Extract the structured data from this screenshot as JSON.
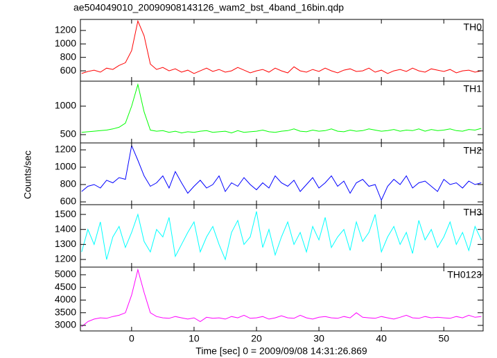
{
  "chart_data": {
    "type": "line",
    "title": "ae504049010_20090908143126_wam2_bst_4band_16bin.qdp",
    "xlabel": "Time [sec] 0 = 2009/09/08 14:31:26.869",
    "ylabel": "Counts/sec",
    "xlim": [
      -8.2,
      56.3
    ],
    "xticks": [
      0,
      10,
      20,
      30,
      40,
      50
    ],
    "x": [
      -8,
      -7,
      -6,
      -5,
      -4,
      -3,
      -2,
      -1,
      0,
      1,
      2,
      3,
      4,
      5,
      6,
      7,
      8,
      9,
      10,
      11,
      12,
      13,
      14,
      15,
      16,
      17,
      18,
      19,
      20,
      21,
      22,
      23,
      24,
      25,
      26,
      27,
      28,
      29,
      30,
      31,
      32,
      33,
      34,
      35,
      36,
      37,
      38,
      39,
      40,
      41,
      42,
      43,
      44,
      45,
      46,
      47,
      48,
      49,
      50,
      51,
      52,
      53,
      54,
      55,
      56
    ],
    "panels": [
      {
        "label": "TH0",
        "color": "#ff0000",
        "ylim": [
          446,
          1364
        ],
        "yticks": [
          600,
          800,
          1000,
          1200
        ],
        "values": [
          560,
          590,
          610,
          580,
          640,
          620,
          680,
          720,
          900,
          1340,
          1120,
          700,
          620,
          650,
          600,
          630,
          580,
          610,
          560,
          600,
          640,
          590,
          620,
          580,
          600,
          650,
          610,
          570,
          600,
          620,
          580,
          640,
          600,
          570,
          660,
          600,
          580,
          620,
          590,
          640,
          600,
          570,
          610,
          630,
          590,
          600,
          640,
          580,
          610,
          560,
          600,
          620,
          590,
          640,
          600,
          580,
          630,
          610,
          590,
          620,
          570,
          600,
          610,
          580,
          600
        ]
      },
      {
        "label": "TH1",
        "color": "#00ff00",
        "ylim": [
          354,
          1439
        ],
        "yticks": [
          500,
          1000
        ],
        "values": [
          540,
          550,
          560,
          570,
          580,
          600,
          630,
          700,
          1000,
          1380,
          900,
          580,
          560,
          570,
          540,
          560,
          530,
          550,
          540,
          560,
          570,
          540,
          550,
          560,
          530,
          570,
          540,
          550,
          560,
          580,
          550,
          540,
          560,
          570,
          600,
          560,
          550,
          580,
          560,
          570,
          600,
          560,
          550,
          580,
          560,
          570,
          600,
          580,
          560,
          570,
          590,
          560,
          580,
          570,
          600,
          560,
          590,
          570,
          580,
          600,
          570,
          560,
          590,
          580,
          610
        ]
      },
      {
        "label": "TH2",
        "color": "#0000ff",
        "ylim": [
          568,
          1280
        ],
        "yticks": [
          600,
          800,
          1000,
          1200
        ],
        "values": [
          720,
          780,
          800,
          760,
          850,
          820,
          880,
          860,
          1250,
          1080,
          900,
          780,
          820,
          900,
          760,
          950,
          820,
          700,
          780,
          850,
          760,
          800,
          900,
          720,
          820,
          780,
          880,
          800,
          740,
          820,
          760,
          900,
          820,
          780,
          850,
          720,
          800,
          880,
          760,
          820,
          900,
          780,
          840,
          700,
          820,
          860,
          780,
          800,
          620,
          780,
          860,
          800,
          900,
          760,
          820,
          840,
          780,
          720,
          860,
          800,
          820,
          760,
          840,
          800,
          820
        ]
      },
      {
        "label": "TH3",
        "color": "#00ffff",
        "ylim": [
          1149,
          1565
        ],
        "yticks": [
          1200,
          1300,
          1400,
          1500
        ],
        "values": [
          1250,
          1400,
          1300,
          1450,
          1200,
          1350,
          1420,
          1280,
          1380,
          1500,
          1320,
          1250,
          1400,
          1350,
          1480,
          1220,
          1300,
          1380,
          1450,
          1250,
          1350,
          1420,
          1300,
          1200,
          1380,
          1460,
          1300,
          1350,
          1520,
          1280,
          1400,
          1230,
          1350,
          1450,
          1300,
          1380,
          1250,
          1420,
          1330,
          1480,
          1280,
          1350,
          1400,
          1260,
          1450,
          1320,
          1380,
          1500,
          1250,
          1350,
          1420,
          1300,
          1380,
          1240,
          1460,
          1330,
          1400,
          1280,
          1350,
          1450,
          1300,
          1380,
          1260,
          1420,
          1330
        ]
      },
      {
        "label": "TH0123",
        "color": "#ff00ff",
        "ylim": [
          2781,
          5301
        ],
        "yticks": [
          3000,
          3500,
          4000,
          4500,
          5000
        ],
        "values": [
          2950,
          3150,
          3250,
          3300,
          3280,
          3350,
          3400,
          3500,
          4200,
          5200,
          4300,
          3500,
          3350,
          3300,
          3280,
          3350,
          3300,
          3250,
          3300,
          3150,
          3320,
          3280,
          3300,
          3250,
          3350,
          3300,
          3400,
          3280,
          3300,
          3350,
          3250,
          3300,
          3380,
          3300,
          3280,
          3400,
          3300,
          3250,
          3320,
          3350,
          3300,
          3280,
          3350,
          3300,
          3500,
          3320,
          3300,
          3280,
          3350,
          3300,
          3250,
          3320,
          3400,
          3300,
          3280,
          3350,
          3300,
          3320,
          3300,
          3280,
          3350,
          3300,
          3400,
          3320,
          3350
        ]
      }
    ]
  }
}
